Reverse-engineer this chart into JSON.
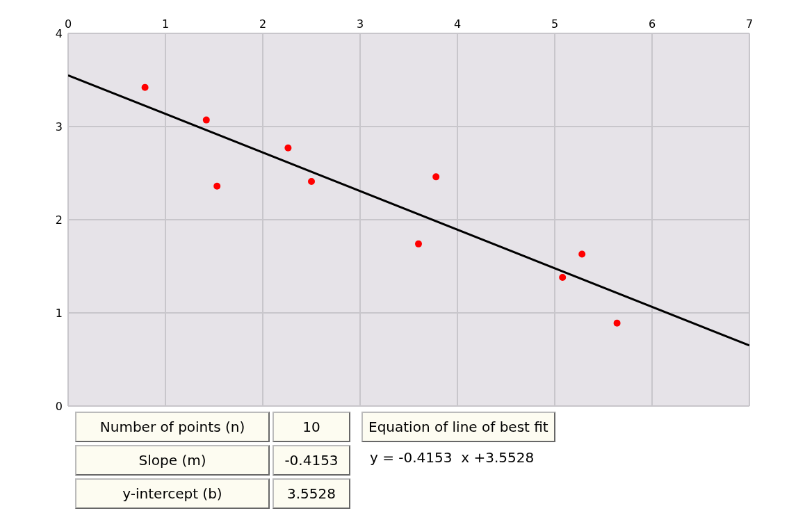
{
  "chart_data": {
    "type": "scatter",
    "x": [
      0.79,
      1.42,
      1.53,
      2.26,
      2.5,
      3.6,
      3.78,
      5.08,
      5.28,
      5.64
    ],
    "series": [
      {
        "type": "scatter",
        "color": "#ff0000",
        "marker": "circle",
        "values": [
          3.42,
          3.07,
          2.36,
          2.77,
          2.41,
          1.74,
          2.46,
          1.38,
          1.63,
          0.89
        ]
      },
      {
        "type": "line",
        "color": "#000000",
        "marker": "none",
        "x": [
          0,
          7
        ],
        "values": [
          3.55,
          0.65
        ]
      }
    ],
    "xlim": [
      0,
      7
    ],
    "xticks": [
      0,
      1,
      2,
      3,
      4,
      5,
      6,
      7
    ],
    "ylim": [
      0,
      4
    ],
    "yticks": [
      0,
      1,
      2,
      3,
      4
    ],
    "grid": true,
    "legend": false,
    "annotations": [
      "Number of points (n)",
      "10",
      "Slope (m)",
      "-0.4153",
      "y-intercept (b)",
      "3.5528",
      "Equation of line of best fit",
      "y = -0.4153  x +3.5528"
    ]
  }
}
